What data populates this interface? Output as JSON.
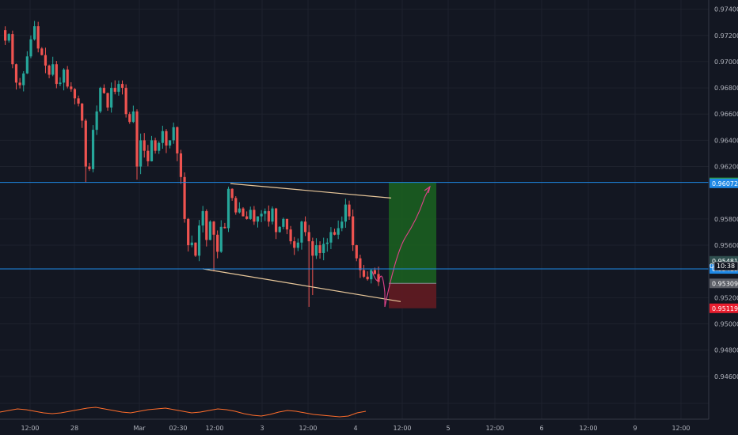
{
  "chart_data": {
    "type": "candlestick",
    "y_axis": {
      "min": 0.9443,
      "max": 0.9747,
      "ticks": [
        "0.97400",
        "0.97200",
        "0.97000",
        "0.96800",
        "0.96600",
        "0.96400",
        "0.96200",
        "0.95800",
        "0.95600",
        "0.95200",
        "0.95000",
        "0.94800",
        "0.94600"
      ],
      "position": "right"
    },
    "x_axis": {
      "ticks": [
        "12:00",
        "28",
        "Mar",
        "02:30",
        "12:00",
        "3",
        "12:00",
        "4",
        "12:00",
        "5",
        "12:00",
        "6",
        "12:00",
        "9",
        "12:00"
      ]
    },
    "price_levels": [
      {
        "label": "0.96079",
        "value": 0.96079,
        "color": "#2e9e3e",
        "line": true
      },
      {
        "label": "0.96072",
        "value": 0.96072,
        "color": "#1e88e5",
        "line": false
      },
      {
        "label": "0.95481",
        "value": 0.95481,
        "color": "#2f4f4f",
        "line": false
      },
      {
        "label": "0.95419",
        "value": 0.95419,
        "color": "#1e88e5",
        "line": true
      },
      {
        "label": "0.95309",
        "value": 0.95309,
        "color": "#5b5e66",
        "line": false
      },
      {
        "label": "0.95119",
        "value": 0.95119,
        "color": "#e91e2f",
        "line": false
      }
    ],
    "countdown": {
      "label": "10:38",
      "marker": "0"
    },
    "series": [
      {
        "name": "",
        "points": [
          0.9724,
          0.9716,
          0.9721,
          0.9698,
          0.9684,
          0.9682,
          0.9691,
          0.9704,
          0.9717,
          0.9727,
          0.971,
          0.9705,
          0.9697,
          0.969,
          0.9698,
          0.9683,
          0.9684,
          0.9694,
          0.9681,
          0.9679,
          0.9672,
          0.9668,
          0.9655,
          0.962,
          0.9618,
          0.9648,
          0.9662,
          0.968,
          0.9676,
          0.9665,
          0.968,
          0.9677,
          0.9683,
          0.968,
          0.966,
          0.9654,
          0.9662,
          0.962,
          0.964,
          0.9632,
          0.9624,
          0.964,
          0.9632,
          0.9638,
          0.9647,
          0.9636,
          0.964,
          0.965,
          0.963,
          0.9612,
          0.958,
          0.956,
          0.9562,
          0.9552,
          0.9575,
          0.9586,
          0.9564,
          0.9578,
          0.9568,
          0.9555,
          0.9574,
          0.9573,
          0.9603,
          0.9596,
          0.9585,
          0.9588,
          0.9582,
          0.958,
          0.9587,
          0.9578,
          0.9582,
          0.9584,
          0.9586,
          0.9578,
          0.9588,
          0.957,
          0.9574,
          0.958,
          0.9572,
          0.9563,
          0.9558,
          0.9562,
          0.9578,
          0.957,
          0.9563,
          0.9552,
          0.956,
          0.9554,
          0.9561,
          0.9562,
          0.957,
          0.9568,
          0.9573,
          0.9578,
          0.9591,
          0.9582,
          0.956,
          0.955,
          0.9541,
          0.9536,
          0.9534,
          0.9541,
          0.9538,
          0.9532
        ]
      }
    ],
    "annotations": [
      {
        "type": "trend_line",
        "from": [
          0.9607,
          "12:00"
        ],
        "to": [
          0.9596,
          "4"
        ],
        "color": "#e8c79a"
      },
      {
        "type": "trend_line",
        "from": [
          0.9542,
          "12:00"
        ],
        "to": [
          0.9517,
          "4"
        ],
        "color": "#e8c79a"
      },
      {
        "type": "long_position",
        "entry": 0.95309,
        "target": 0.96079,
        "stop": 0.95119,
        "profit_color": "#1b5e20",
        "loss_color": "#5e1a22"
      },
      {
        "type": "projection_curve",
        "color": "#e0438a"
      }
    ],
    "oscillator_pane": {
      "color": "#ff6d2b"
    },
    "colors": {
      "up": "#26a69a",
      "down": "#ef5350",
      "background": "#131722",
      "grid": "#1e222d",
      "axis_text": "#b2b5be",
      "level_line": "#1e88e5"
    }
  }
}
